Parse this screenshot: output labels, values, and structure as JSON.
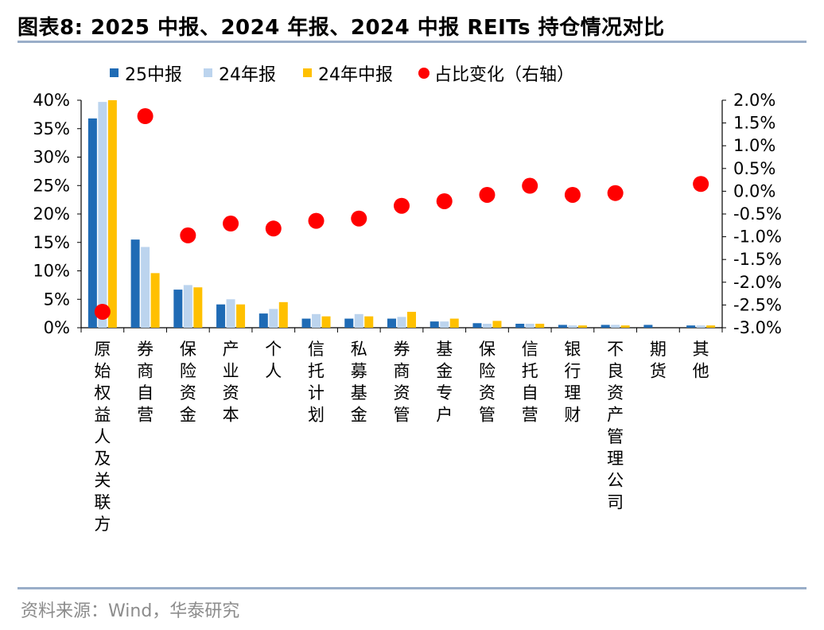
{
  "title": "图表8:  2025 中报、2024 年报、2024 中报 REITs 持仓情况对比",
  "source": "资料来源：Wind，华泰研究",
  "colors": {
    "s25h": "#1f6bb5",
    "s24y": "#bcd4ee",
    "s24h": "#ffc000",
    "change": "#ff0000",
    "rule": "#9aaec8"
  },
  "chart_data": {
    "type": "bar",
    "categories": [
      "原始权益人及关联方",
      "券商自营",
      "保险资金",
      "产业资本",
      "个人",
      "信托计划",
      "私募基金",
      "券商资管",
      "基金专户",
      "保险资管",
      "信托自营",
      "银行理财",
      "不良资产管理公司",
      "期货",
      "其他"
    ],
    "series": [
      {
        "name": "25中报",
        "type": "bar",
        "axis": "left",
        "values": [
          36.8,
          15.5,
          6.7,
          4.1,
          2.5,
          1.6,
          1.6,
          1.6,
          1.1,
          0.8,
          0.7,
          0.5,
          0.5,
          0.5,
          0.4
        ]
      },
      {
        "name": "24年报",
        "type": "bar",
        "axis": "left",
        "values": [
          39.7,
          14.2,
          7.5,
          5.0,
          3.3,
          2.4,
          2.4,
          1.9,
          1.1,
          0.7,
          0.7,
          0.4,
          0.5,
          0.0,
          0.4
        ]
      },
      {
        "name": "24年中报",
        "type": "bar",
        "axis": "left",
        "values": [
          40.0,
          9.6,
          7.1,
          4.1,
          4.5,
          2.0,
          2.0,
          2.8,
          1.6,
          1.2,
          0.7,
          0.4,
          0.4,
          0.0,
          0.4
        ]
      },
      {
        "name": "占比变化（右轴）",
        "type": "scatter",
        "axis": "right",
        "values": [
          -2.65,
          1.65,
          -0.97,
          -0.71,
          -0.82,
          -0.65,
          -0.6,
          -0.32,
          -0.22,
          -0.08,
          0.12,
          -0.08,
          -0.04,
          null,
          0.16
        ]
      }
    ],
    "ylim_left": [
      0,
      40
    ],
    "yticks_left": [
      "0%",
      "5%",
      "10%",
      "15%",
      "20%",
      "25%",
      "30%",
      "35%",
      "40%"
    ],
    "ylim_right": [
      -3.0,
      2.0
    ],
    "yticks_right": [
      "-3.0%",
      "-2.5%",
      "-2.0%",
      "-1.5%",
      "-1.0%",
      "-0.5%",
      "0.0%",
      "0.5%",
      "1.0%",
      "1.5%",
      "2.0%"
    ],
    "legend_position": "top",
    "grid": false
  }
}
